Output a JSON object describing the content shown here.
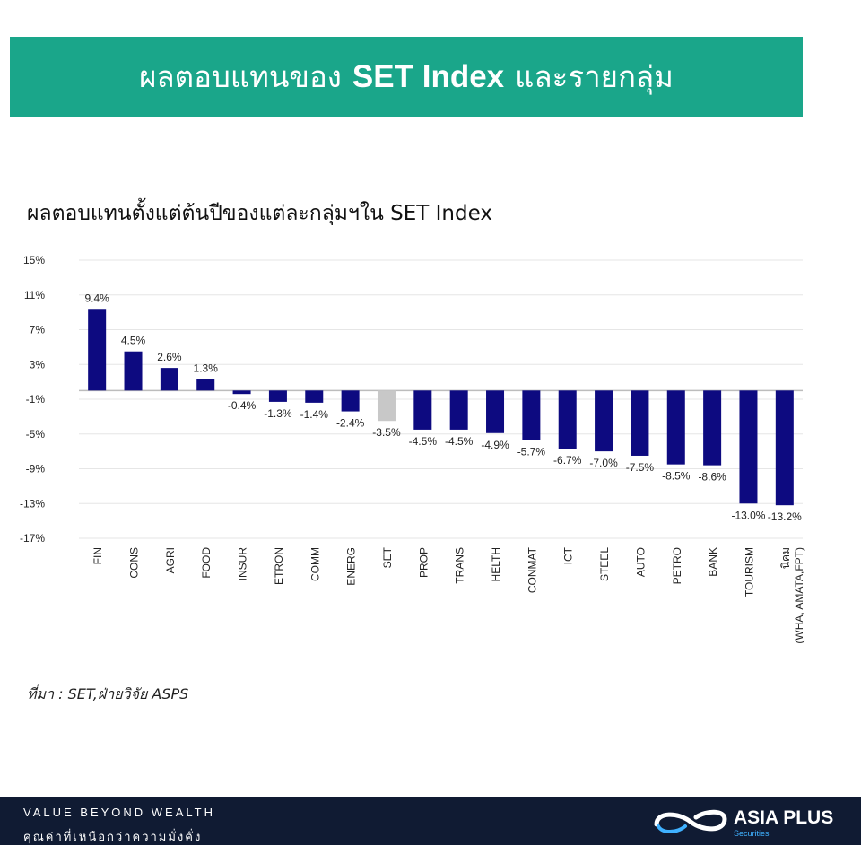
{
  "banner": {
    "title_prefix": "ผลตอบแทนของ",
    "title_bold": "SET Index",
    "title_suffix": "และรายกลุ่ม"
  },
  "colors": {
    "banner_bg": "#1aa68a",
    "bar": "#0d0a80",
    "bar_highlight": "#c8c8c8",
    "footer_bg": "#101b33",
    "logo_blue": "#3fb1ff"
  },
  "chart_data": {
    "type": "bar",
    "title": "ผลตอบแทนตั้งแต่ต้นปีของแต่ละกลุ่มฯใน SET Index",
    "categories": [
      "FIN",
      "CONS",
      "AGRI",
      "FOOD",
      "INSUR",
      "ETRON",
      "COMM",
      "ENERG",
      "SET",
      "PROP",
      "TRANS",
      "HELTH",
      "CONMAT",
      "ICT",
      "STEEL",
      "AUTO",
      "PETRO",
      "BANK",
      "TOURISM",
      "นิคม|(WHA, AMATA,FPT)"
    ],
    "values": [
      9.4,
      4.5,
      2.6,
      1.3,
      -0.4,
      -1.3,
      -1.4,
      -2.4,
      -3.5,
      -4.5,
      -4.5,
      -4.9,
      -5.7,
      -6.7,
      -7.0,
      -7.5,
      -8.5,
      -8.6,
      -13.0,
      -13.2
    ],
    "data_labels": [
      "9.4%",
      "4.5%",
      "2.6%",
      "1.3%",
      "-0.4%",
      "-1.3%",
      "-1.4%",
      "-2.4%",
      "-3.5%",
      "-4.5%",
      "-4.5%",
      "-4.9%",
      "-5.7%",
      "-6.7%",
      "-7.0%",
      "-7.5%",
      "-8.5%",
      "-8.6%",
      "-13.0%",
      "-13.2%"
    ],
    "highlight_category": "SET",
    "y_ticks": [
      15,
      11,
      7,
      3,
      -1,
      -5,
      -9,
      -13,
      -17
    ],
    "y_tick_labels": [
      "15%",
      "11%",
      "7%",
      "3%",
      "-1%",
      "-5%",
      "-9%",
      "-13%",
      "-17%"
    ],
    "ylim": [
      -17,
      15
    ],
    "grid": true,
    "legend": "none"
  },
  "source": "ที่มา : SET,ฝ่ายวิจัย ASPS",
  "footer": {
    "tagline_en": "VALUE BEYOND WEALTH",
    "tagline_th": "คุณค่าที่เหนือกว่าความมั่งคั่ง",
    "brand": "ASIA PLUS",
    "brand_sub": "Securities",
    "logo_icon": "infinity-swoosh-icon"
  }
}
